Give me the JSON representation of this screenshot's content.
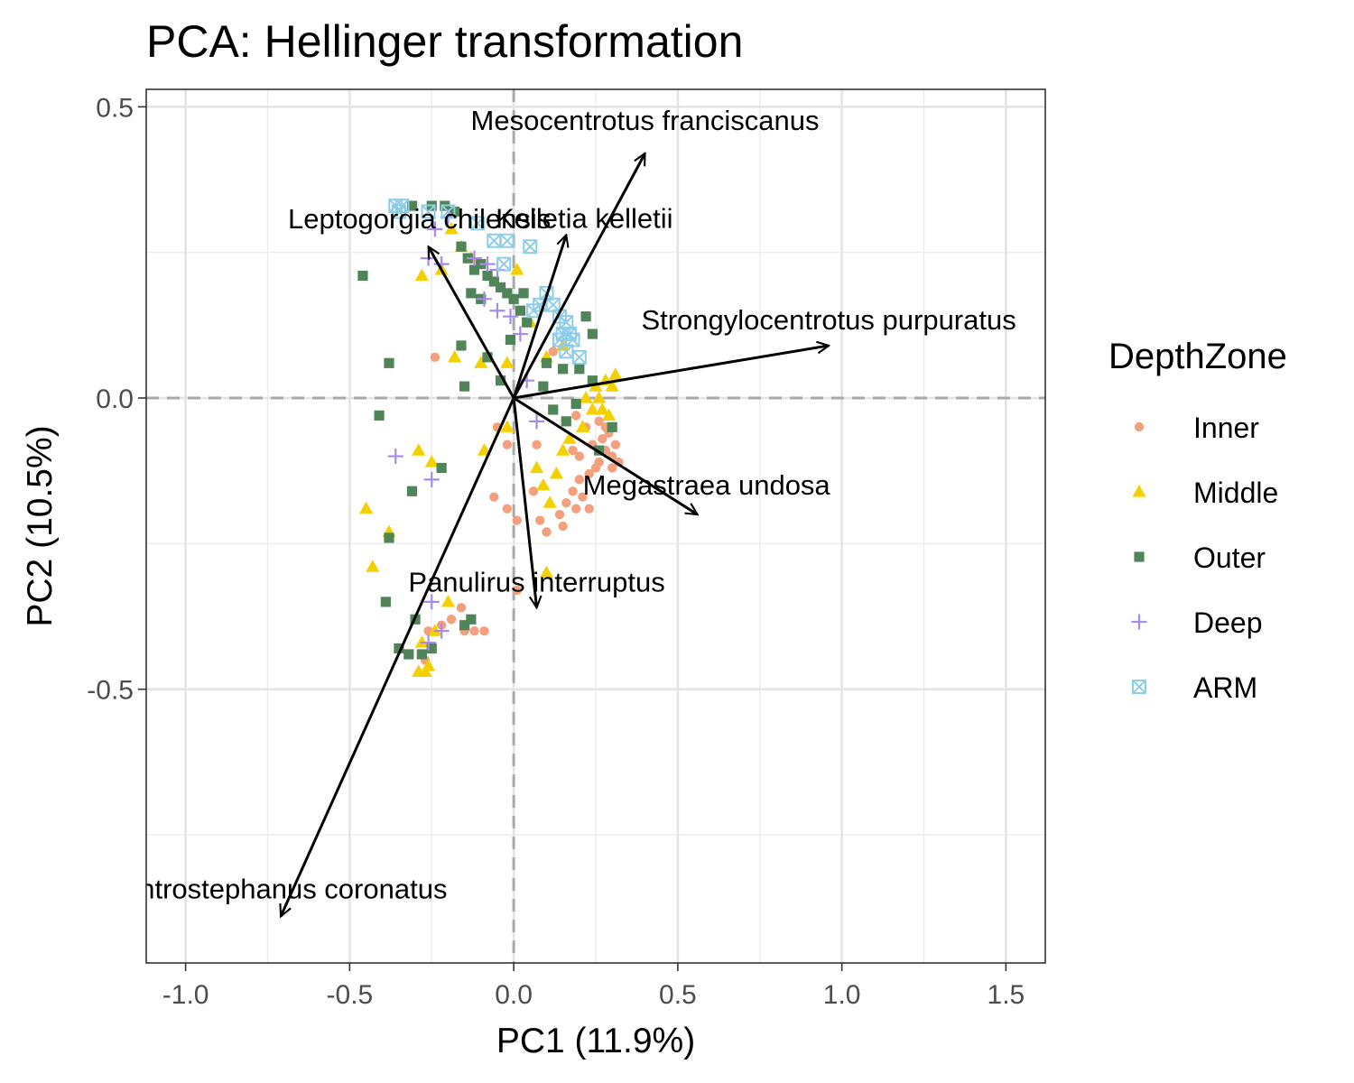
{
  "chart_data": {
    "type": "scatter",
    "title": "PCA: Hellinger transformation",
    "xlabel": "PC1 (11.9%)",
    "ylabel": "PC2 (10.5%)",
    "xlim": [
      -1.12,
      1.62
    ],
    "ylim": [
      -0.97,
      0.53
    ],
    "x_ticks": [
      -1.0,
      -0.5,
      0.0,
      0.5,
      1.0,
      1.5
    ],
    "x_tick_labels": [
      "-1.0",
      "-0.5",
      "0.0",
      "0.5",
      "1.0",
      "1.5"
    ],
    "y_ticks": [
      -0.5,
      0.0,
      0.5
    ],
    "y_tick_labels": [
      "-0.5",
      "0.0",
      "0.5"
    ],
    "grid": true,
    "reference_lines": {
      "x": 0,
      "y": 0,
      "style": "dashed"
    },
    "legend": {
      "title": "DepthZone",
      "position": "right",
      "entries": [
        {
          "label": "Inner",
          "shape": "circle",
          "color": "#F4A07E"
        },
        {
          "label": "Middle",
          "shape": "triangle",
          "color": "#F5D000"
        },
        {
          "label": "Outer",
          "shape": "square",
          "color": "#4F8558"
        },
        {
          "label": "Deep",
          "shape": "plus",
          "color": "#A68BEA"
        },
        {
          "label": "ARM",
          "shape": "boxcross",
          "color": "#8ECDE8"
        }
      ]
    },
    "vectors": [
      {
        "label": "Mesocentrotus franciscanus",
        "x": 0.4,
        "y": 0.42
      },
      {
        "label": "Kelletia kelletii",
        "x": 0.16,
        "y": 0.28
      },
      {
        "label": "Leptogorgia chilensis",
        "x": -0.26,
        "y": 0.26
      },
      {
        "label": "Strongylocentrotus purpuratus",
        "x": 0.96,
        "y": 0.09
      },
      {
        "label": "Megastraea undosa",
        "x": 0.56,
        "y": -0.2
      },
      {
        "label": "Panulirus interruptus",
        "x": 0.07,
        "y": -0.36
      },
      {
        "label": "Centrostephanus coronatus",
        "x": -0.71,
        "y": -0.89
      }
    ],
    "series": [
      {
        "name": "Inner",
        "points": [
          [
            -0.24,
            0.07
          ],
          [
            0.12,
            0.08
          ],
          [
            0.19,
            -0.03
          ],
          [
            0.22,
            -0.05
          ],
          [
            0.24,
            -0.08
          ],
          [
            0.26,
            -0.04
          ],
          [
            0.27,
            -0.07
          ],
          [
            0.28,
            -0.09
          ],
          [
            0.29,
            -0.06
          ],
          [
            0.3,
            -0.1
          ],
          [
            0.31,
            -0.08
          ],
          [
            0.32,
            -0.11
          ],
          [
            0.25,
            -0.12
          ],
          [
            0.23,
            -0.13
          ],
          [
            0.2,
            -0.14
          ],
          [
            0.18,
            -0.16
          ],
          [
            0.16,
            -0.18
          ],
          [
            0.14,
            -0.2
          ],
          [
            0.19,
            -0.19
          ],
          [
            0.21,
            -0.17
          ],
          [
            0.23,
            -0.19
          ],
          [
            0.15,
            -0.22
          ],
          [
            0.1,
            -0.23
          ],
          [
            0.08,
            -0.21
          ],
          [
            0.06,
            -0.16
          ],
          [
            0.07,
            -0.08
          ],
          [
            -0.05,
            -0.05
          ],
          [
            -0.02,
            -0.08
          ],
          [
            -0.06,
            -0.17
          ],
          [
            -0.02,
            -0.19
          ],
          [
            0.01,
            -0.21
          ],
          [
            -0.16,
            -0.36
          ],
          [
            -0.19,
            -0.38
          ],
          [
            -0.22,
            -0.39
          ],
          [
            -0.15,
            -0.4
          ],
          [
            -0.12,
            -0.4
          ],
          [
            -0.09,
            -0.4
          ],
          [
            -0.26,
            -0.4
          ],
          [
            -0.27,
            -0.45
          ],
          [
            0.01,
            -0.33
          ],
          [
            0.18,
            -0.09
          ],
          [
            0.28,
            -0.05
          ],
          [
            0.3,
            -0.12
          ],
          [
            0.26,
            -0.11
          ],
          [
            0.2,
            -0.1
          ]
        ]
      },
      {
        "name": "Middle",
        "points": [
          [
            -0.45,
            -0.19
          ],
          [
            -0.43,
            -0.29
          ],
          [
            -0.38,
            -0.23
          ],
          [
            -0.29,
            -0.09
          ],
          [
            -0.25,
            -0.11
          ],
          [
            -0.09,
            -0.09
          ],
          [
            -0.02,
            -0.05
          ],
          [
            0.07,
            -0.12
          ],
          [
            0.09,
            -0.15
          ],
          [
            0.11,
            -0.18
          ],
          [
            0.13,
            -0.13
          ],
          [
            0.15,
            -0.09
          ],
          [
            0.17,
            -0.07
          ],
          [
            0.21,
            -0.05
          ],
          [
            0.24,
            -0.02
          ],
          [
            0.26,
            0.0
          ],
          [
            0.28,
            0.03
          ],
          [
            0.3,
            0.02
          ],
          [
            0.27,
            -0.02
          ],
          [
            0.25,
            0.02
          ],
          [
            0.29,
            -0.03
          ],
          [
            0.31,
            0.04
          ],
          [
            -0.18,
            0.07
          ],
          [
            -0.1,
            0.06
          ],
          [
            0.1,
            0.07
          ],
          [
            0.15,
            0.09
          ],
          [
            -0.02,
            0.06
          ],
          [
            -0.16,
            0.26
          ],
          [
            -0.19,
            0.29
          ],
          [
            -0.22,
            0.22
          ],
          [
            -0.13,
            0.24
          ],
          [
            -0.28,
            0.21
          ],
          [
            0.01,
            0.22
          ],
          [
            -0.27,
            -0.47
          ],
          [
            -0.26,
            -0.46
          ],
          [
            -0.29,
            -0.47
          ],
          [
            -0.24,
            -0.4
          ],
          [
            -0.2,
            -0.35
          ],
          [
            -0.28,
            -0.42
          ],
          [
            0.05,
            0.13
          ],
          [
            0.1,
            -0.3
          ],
          [
            0.22,
            0.0
          ]
        ]
      },
      {
        "name": "Outer",
        "points": [
          [
            -0.38,
            0.06
          ],
          [
            -0.41,
            -0.03
          ],
          [
            -0.38,
            -0.24
          ],
          [
            -0.31,
            -0.16
          ],
          [
            -0.22,
            -0.12
          ],
          [
            -0.39,
            -0.35
          ],
          [
            -0.35,
            -0.43
          ],
          [
            -0.3,
            -0.38
          ],
          [
            -0.32,
            -0.44
          ],
          [
            -0.28,
            -0.44
          ],
          [
            -0.25,
            -0.43
          ],
          [
            -0.15,
            -0.39
          ],
          [
            -0.13,
            -0.38
          ],
          [
            -0.46,
            0.21
          ],
          [
            -0.31,
            0.33
          ],
          [
            -0.25,
            0.33
          ],
          [
            -0.21,
            0.33
          ],
          [
            -0.18,
            0.32
          ],
          [
            -0.16,
            0.26
          ],
          [
            -0.14,
            0.24
          ],
          [
            -0.12,
            0.22
          ],
          [
            -0.1,
            0.23
          ],
          [
            -0.08,
            0.21
          ],
          [
            -0.06,
            0.2
          ],
          [
            -0.04,
            0.19
          ],
          [
            -0.02,
            0.18
          ],
          [
            0.0,
            0.17
          ],
          [
            0.02,
            0.15
          ],
          [
            0.04,
            0.13
          ],
          [
            -0.13,
            0.18
          ],
          [
            -0.1,
            0.17
          ],
          [
            -0.16,
            0.09
          ],
          [
            -0.08,
            0.07
          ],
          [
            -0.15,
            0.02
          ],
          [
            -0.04,
            0.03
          ],
          [
            0.1,
            0.06
          ],
          [
            0.15,
            0.05
          ],
          [
            0.2,
            0.05
          ],
          [
            0.24,
            0.03
          ],
          [
            0.09,
            0.02
          ],
          [
            0.16,
            -0.04
          ],
          [
            0.19,
            -0.01
          ],
          [
            0.3,
            -0.05
          ],
          [
            0.26,
            -0.09
          ],
          [
            0.12,
            -0.02
          ],
          [
            -0.01,
            0.1
          ],
          [
            0.03,
            0.18
          ],
          [
            0.22,
            0.14
          ],
          [
            0.24,
            0.11
          ]
        ]
      },
      {
        "name": "Deep",
        "points": [
          [
            -0.36,
            -0.1
          ],
          [
            -0.25,
            -0.14
          ],
          [
            -0.25,
            -0.35
          ],
          [
            -0.26,
            -0.42
          ],
          [
            -0.22,
            -0.4
          ],
          [
            -0.26,
            0.24
          ],
          [
            -0.22,
            0.23
          ],
          [
            -0.12,
            0.24
          ],
          [
            -0.08,
            0.23
          ],
          [
            -0.05,
            0.22
          ],
          [
            -0.09,
            0.17
          ],
          [
            -0.05,
            0.15
          ],
          [
            -0.01,
            0.14
          ],
          [
            0.02,
            0.11
          ],
          [
            0.07,
            -0.04
          ],
          [
            0.04,
            0.03
          ],
          [
            -0.24,
            0.29
          ],
          [
            -0.2,
            0.31
          ]
        ]
      },
      {
        "name": "ARM",
        "points": [
          [
            -0.36,
            0.33
          ],
          [
            -0.35,
            0.32
          ],
          [
            -0.34,
            0.33
          ],
          [
            -0.26,
            0.32
          ],
          [
            -0.2,
            0.32
          ],
          [
            -0.11,
            0.3
          ],
          [
            -0.06,
            0.27
          ],
          [
            -0.02,
            0.27
          ],
          [
            0.05,
            0.26
          ],
          [
            -0.03,
            0.23
          ],
          [
            0.1,
            0.18
          ],
          [
            0.12,
            0.16
          ],
          [
            0.14,
            0.14
          ],
          [
            0.16,
            0.13
          ],
          [
            0.15,
            0.11
          ],
          [
            0.17,
            0.11
          ],
          [
            0.14,
            0.1
          ],
          [
            0.16,
            0.08
          ],
          [
            0.18,
            0.1
          ],
          [
            0.2,
            0.07
          ],
          [
            0.08,
            0.16
          ],
          [
            0.06,
            0.15
          ]
        ]
      }
    ]
  }
}
